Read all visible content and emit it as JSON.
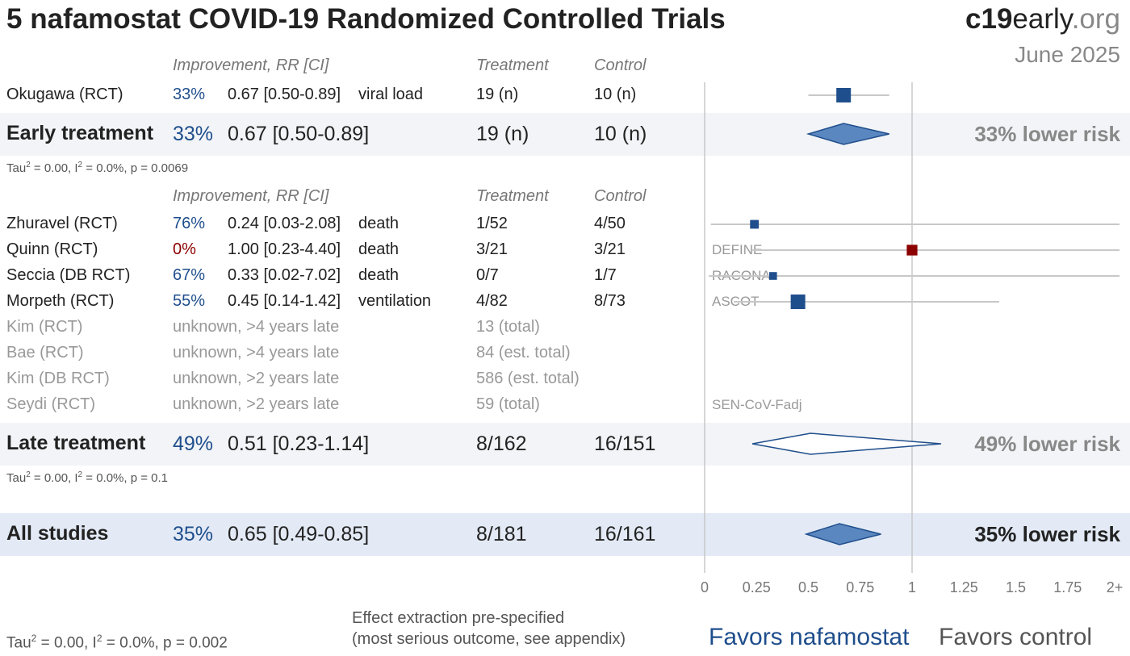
{
  "header": {
    "title": "5 nafamostat COVID-19 Randomized Controlled Trials",
    "brand_bold": "c19",
    "brand_mid": "early",
    "brand_light": ".org",
    "date": "June 2025"
  },
  "columns": {
    "improvement": "Improvement, RR [CI]",
    "treatment": "Treatment",
    "control": "Control"
  },
  "early": {
    "studies": [
      {
        "name": "Okugawa (RCT)",
        "improvement": "33%",
        "rr_text": "0.67 [0.50-0.89]",
        "outcome": "viral load",
        "treatment": "19 (n)",
        "control": "10 (n)"
      }
    ],
    "summary": {
      "label": "Early treatment",
      "improvement": "33%",
      "rr_text": "0.67 [0.50-0.89]",
      "treatment": "19 (n)",
      "control": "10 (n)",
      "lower_risk": "33% lower risk"
    },
    "stats": {
      "tau": "Tau",
      "tau_sup": "2",
      "tau_rest": " = 0.00, I",
      "i_sup": "2",
      "i_rest": " = 0.0%, p = 0.0069"
    }
  },
  "late": {
    "studies": [
      {
        "name": "Zhuravel (RCT)",
        "improvement": "76%",
        "rr_text": "0.24 [0.03-2.08]",
        "outcome": "death",
        "treatment": "1/52",
        "control": "4/50"
      },
      {
        "name": "Quinn (RCT)",
        "improvement": "0%",
        "rr_text": "1.00 [0.23-4.40]",
        "outcome": "death",
        "treatment": "3/21",
        "control": "3/21"
      },
      {
        "name": "Seccia (DB RCT)",
        "improvement": "67%",
        "rr_text": "0.33 [0.02-7.02]",
        "outcome": "death",
        "treatment": "0/7",
        "control": "1/7"
      },
      {
        "name": "Morpeth (RCT)",
        "improvement": "55%",
        "rr_text": "0.45 [0.14-1.42]",
        "outcome": "ventilation",
        "treatment": "4/82",
        "control": "8/73"
      }
    ],
    "pending": [
      {
        "name": "Kim (RCT)",
        "status": "unknown, >4 years late",
        "size": "13 (total)",
        "label": ""
      },
      {
        "name": "Bae (RCT)",
        "status": "unknown, >4 years late",
        "size": "84 (est. total)",
        "label": ""
      },
      {
        "name": "Kim (DB RCT)",
        "status": "unknown, >2 years late",
        "size": "586 (est. total)",
        "label": ""
      },
      {
        "name": "Seydi (RCT)",
        "status": "unknown, >2 years late",
        "size": "59 (total)",
        "label": "SEN-CoV-Fadj"
      }
    ],
    "trial_labels": [
      "",
      "DEFINE",
      "RACONA",
      "ASCOT"
    ],
    "summary": {
      "label": "Late treatment",
      "improvement": "49%",
      "rr_text": "0.51 [0.23-1.14]",
      "treatment": "8/162",
      "control": "16/151",
      "lower_risk": "49% lower risk"
    },
    "stats": {
      "tau": "Tau",
      "tau_sup": "2",
      "tau_rest": " = 0.00, I",
      "i_sup": "2",
      "i_rest": " = 0.0%, p = 0.1"
    }
  },
  "all": {
    "summary": {
      "label": "All studies",
      "improvement": "35%",
      "rr_text": "0.65 [0.49-0.85]",
      "treatment": "8/181",
      "control": "16/161",
      "lower_risk": "35% lower risk"
    },
    "stats": {
      "tau": "Tau",
      "tau_sup": "2",
      "tau_rest": " = 0.00, I",
      "i_sup": "2",
      "i_rest": " = 0.0%, p = 0.002"
    }
  },
  "footer": {
    "note_line1": "Effect extraction pre-specified",
    "note_line2": "(most serious outcome, see appendix)",
    "favors_left": "Favors nafamostat",
    "favors_right": "Favors control"
  },
  "colors": {
    "blue": "#1f4e8c",
    "fill_blue": "#5b87c0",
    "red": "#8b0000",
    "grey_line": "#c8c8c8"
  },
  "chart_data": {
    "type": "forest",
    "axis": {
      "min": 0,
      "max": 2,
      "ticks": [
        "0",
        "0.25",
        "0.5",
        "0.75",
        "1",
        "1.25",
        "1.5",
        "1.75",
        "2+"
      ],
      "reference": 1
    },
    "studies": [
      {
        "name": "Okugawa (RCT)",
        "rr": 0.67,
        "lo": 0.5,
        "hi": 0.89,
        "weight": 1.0
      },
      {
        "name": "Zhuravel (RCT)",
        "rr": 0.24,
        "lo": 0.03,
        "hi": 2.08,
        "weight": 0.4
      },
      {
        "name": "Quinn (RCT)",
        "rr": 1.0,
        "lo": 0.23,
        "hi": 4.4,
        "weight": 0.6
      },
      {
        "name": "Seccia (DB RCT)",
        "rr": 0.33,
        "lo": 0.02,
        "hi": 7.02,
        "weight": 0.3
      },
      {
        "name": "Morpeth (RCT)",
        "rr": 0.45,
        "lo": 0.14,
        "hi": 1.42,
        "weight": 1.0
      }
    ],
    "summaries": [
      {
        "name": "Early treatment",
        "rr": 0.67,
        "lo": 0.5,
        "hi": 0.89,
        "filled": true
      },
      {
        "name": "Late treatment",
        "rr": 0.51,
        "lo": 0.23,
        "hi": 1.14,
        "filled": false
      },
      {
        "name": "All studies",
        "rr": 0.65,
        "lo": 0.49,
        "hi": 0.85,
        "filled": true
      }
    ]
  }
}
